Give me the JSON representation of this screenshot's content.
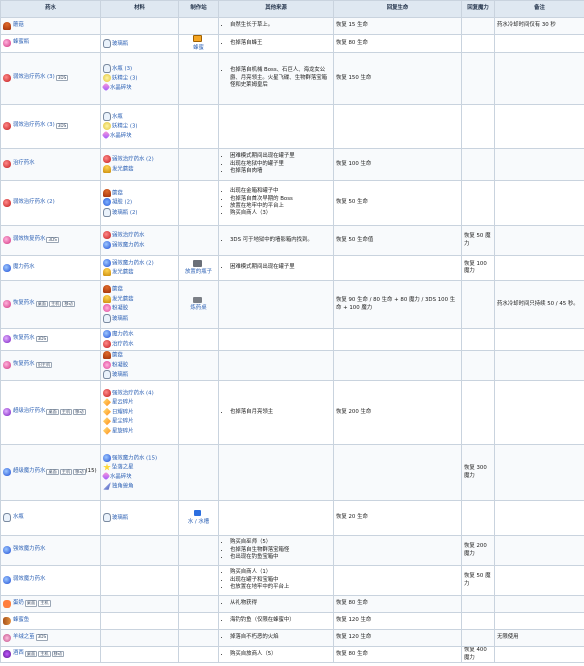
{
  "columns": [
    "药水",
    "材料",
    "制作站",
    "其他来源",
    "回复生命",
    "回复魔力",
    "备注"
  ],
  "rows": [
    {
      "name": "蘑菇",
      "icon": "mushroom",
      "materials": [],
      "station": "",
      "sources": [
        "自然生长于草上。"
      ],
      "hp": "恢复 15 生命",
      "mp": "",
      "note": "药水冷却时间仅有 30 秒"
    },
    {
      "name": "蜂蜜瓶",
      "icon": "potion-pink",
      "materials": [
        {
          "icon": "bottle",
          "text": "玻璃瓶"
        }
      ],
      "station": "蜂蜜",
      "sources": [
        "也掉落自蜂王"
      ],
      "hp": "恢复 80 生命",
      "mp": "",
      "note": ""
    },
    {
      "name": "弱效治疗药水 (3)",
      "icon": "potion-red",
      "tags": [
        "3DS"
      ],
      "materials": [
        {
          "icon": "bottle",
          "text": "水瓶 (3)"
        },
        {
          "icon": "dust",
          "text": "妖精尘 (3)"
        },
        {
          "icon": "crystal",
          "text": "水晶碎块"
        }
      ],
      "station": "",
      "sources": [
        "也掉落自机械 Boss、石巨人、海龙女公爵、月亮领主。火星飞碟、生物群落宝箱怪和史莱姆皇后"
      ],
      "hp": "恢复 150 生命",
      "mp": "",
      "note": ""
    },
    {
      "name": "弱效治疗药水 (3)",
      "icon": "potion-red",
      "tags": [
        "3DS"
      ],
      "materials": [
        {
          "icon": "bottle",
          "text": "水瓶"
        },
        {
          "icon": "dust",
          "text": "妖精尘 (3)"
        },
        {
          "icon": "crystal",
          "text": "水晶碎块"
        }
      ],
      "station": "",
      "sources": [],
      "hp": "",
      "mp": "",
      "note": ""
    },
    {
      "name": "治疗药水",
      "icon": "potion-red",
      "materials": [
        {
          "icon": "potion-red",
          "text": "弱效治疗药水 (2)"
        },
        {
          "icon": "goldmush",
          "text": "发光蘑菇"
        }
      ],
      "station": "",
      "sources": [
        "困难模式期间出现在罐子里",
        "出现在地狱中的罐子里",
        "也掉落自肉墙"
      ],
      "hp": "恢复 100 生命",
      "mp": "",
      "note": ""
    },
    {
      "name": "弱效治疗药水 (2)",
      "icon": "potion-red",
      "materials": [
        {
          "icon": "mushroom",
          "text": "蘑菇"
        },
        {
          "icon": "gel",
          "text": "凝胶 (2)"
        },
        {
          "icon": "bottle",
          "text": "玻璃瓶 (2)"
        }
      ],
      "station": "",
      "sources": [
        "出现在金箱和罐子中",
        "也掉落自首次早期的 Boss",
        "放置在地牢中的平台上",
        "购买自商人（3）"
      ],
      "hp": "恢复 50 生命",
      "mp": "",
      "note": ""
    },
    {
      "name": "弱效恢复药水",
      "icon": "potion-pink",
      "tags": [
        "3DS"
      ],
      "materials": [
        {
          "icon": "potion-red",
          "text": "弱效治疗药水"
        },
        {
          "icon": "potion-blue",
          "text": "弱效魔力药水"
        }
      ],
      "station": "",
      "sources": [
        "3DS 可于地狱中的墙影箱内找到。"
      ],
      "hp": "恢复 50 生命值",
      "mp": "恢复 50 魔力",
      "note": ""
    },
    {
      "name": "魔力药水",
      "icon": "potion-blue",
      "materials": [
        {
          "icon": "potion-blue",
          "text": "弱效魔力药水 (2)"
        },
        {
          "icon": "goldmush",
          "text": "发光蘑菇"
        }
      ],
      "station": "放置的瓶子",
      "sources": [
        "困难模式期间出现在罐子里"
      ],
      "hp": "",
      "mp": "恢复 100 魔力",
      "note": ""
    },
    {
      "name": "恢复药水",
      "icon": "potion-pink",
      "tags": [
        "桌面",
        "主机",
        "移动"
      ],
      "materials": [
        {
          "icon": "mushroom",
          "text": "蘑菇"
        },
        {
          "icon": "goldmush",
          "text": "发光蘑菇"
        },
        {
          "icon": "pinkgel",
          "text": "粉凝胶"
        },
        {
          "icon": "bottle",
          "text": "玻璃瓶"
        }
      ],
      "station": "炼药桌",
      "sources": [],
      "hp": "恢复 90 生命 / 80 生命 + 80 魔力 / 3DS 100 生命 + 100 魔力",
      "mp": "",
      "note": "药水冷却时间只持续 50 / 45 秒。"
    },
    {
      "name": "恢复药水",
      "icon": "potion-purple",
      "tags": [
        "3DS"
      ],
      "materials": [
        {
          "icon": "potion-blue",
          "text": "魔力药水"
        },
        {
          "icon": "potion-red",
          "text": "治疗药水"
        }
      ],
      "station": "",
      "sources": [],
      "hp": "",
      "mp": "",
      "note": ""
    },
    {
      "name": "恢复药水",
      "icon": "potion-pink",
      "tags": [
        "旧主机"
      ],
      "materials": [
        {
          "icon": "mushroom",
          "text": "蘑菇"
        },
        {
          "icon": "pinkgel",
          "text": "粉凝胶"
        },
        {
          "icon": "bottle",
          "text": "玻璃瓶"
        }
      ],
      "station": "",
      "sources": [],
      "hp": "",
      "mp": "",
      "note": ""
    },
    {
      "name": "超级治疗药水",
      "icon": "potion-purple",
      "tags": [
        "桌面",
        "主机",
        "移动"
      ],
      "materials": [
        {
          "icon": "potion-red",
          "text": "强效治疗药水 (4)"
        },
        {
          "icon": "fragment",
          "text": "星云碎片"
        },
        {
          "icon": "fragment",
          "text": "日耀碎片"
        },
        {
          "icon": "fragment",
          "text": "星尘碎片"
        },
        {
          "icon": "fragment",
          "text": "星旋碎片"
        }
      ],
      "station": "",
      "sources": [
        "也掉落自月亮领主"
      ],
      "hp": "恢复 200 生命",
      "mp": "",
      "note": ""
    },
    {
      "name": "超级魔力药水",
      "icon": "potion-blue",
      "tags": [
        "桌面",
        "主机",
        "移动"
      ],
      "count": "(15)",
      "materials": [
        {
          "icon": "potion-blue",
          "text": "强效魔力药水 (15)"
        },
        {
          "icon": "star",
          "text": "坠落之星"
        },
        {
          "icon": "crystal",
          "text": "水晶碎块"
        },
        {
          "icon": "horn",
          "text": "独角兽角"
        }
      ],
      "station": "",
      "sources": [],
      "hp": "",
      "mp": "恢复 300 魔力",
      "note": ""
    },
    {
      "name": "水瓶",
      "icon": "bottle",
      "materials": [
        {
          "icon": "bottle",
          "text": "玻璃瓶"
        }
      ],
      "station": "水 / 水槽",
      "sources": [],
      "hp": "恢复 20 生命",
      "mp": "",
      "note": ""
    },
    {
      "name": "强效魔力药水",
      "icon": "potion-blue",
      "materials": [],
      "station": "",
      "sources": [
        "购买自巫师（5）",
        "也掉落自生物群落宝箱怪",
        "也出现在钓鱼宝箱中"
      ],
      "hp": "",
      "mp": "恢复 200 魔力",
      "note": ""
    },
    {
      "name": "弱效魔力药水",
      "icon": "potion-blue",
      "materials": [],
      "station": "",
      "sources": [
        "购买自商人（1）",
        "出现在罐子和宝箱中",
        "也放置在地牢中的平台上"
      ],
      "hp": "",
      "mp": "恢复 50 魔力",
      "note": ""
    },
    {
      "name": "蛋奶",
      "icon": "sushi",
      "tags": [
        "桌面",
        "主机"
      ],
      "materials": [],
      "station": "",
      "sources": [
        "从礼物获得"
      ],
      "hp": "恢复 80 生命",
      "mp": "",
      "note": ""
    },
    {
      "name": "蜂蜜鱼",
      "icon": "fish",
      "materials": [],
      "station": "",
      "sources": [
        "海钓钓鱼（仅限在蜂蜜中）"
      ],
      "hp": "恢复 120 生命",
      "mp": "",
      "note": ""
    },
    {
      "name": "羊绒之茧",
      "icon": "lotus",
      "tags": [
        "3DS"
      ],
      "materials": [],
      "station": "",
      "sources": [
        "掉落自不朽恶的火焰"
      ],
      "hp": "恢复 120 生命",
      "mp": "",
      "note": "无限使用"
    },
    {
      "name": "酒西",
      "icon": "wine",
      "tags": [
        "桌面",
        "主机",
        "移动"
      ],
      "materials": [],
      "station": "",
      "sources": [
        "购买自旅商人（5）"
      ],
      "hp": "恢复 80 生命",
      "mp": "恢复 400 魔力",
      "note": ""
    }
  ]
}
